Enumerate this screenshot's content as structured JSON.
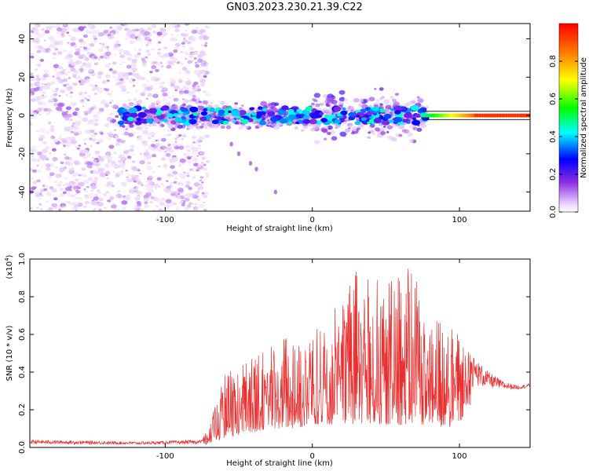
{
  "title": "GN03.2023.230.21.39.C22",
  "chart_data": [
    {
      "type": "heatmap",
      "xlabel": "Height of straight line (km)",
      "ylabel": "Frequency (Hz)",
      "xlim": [
        -192,
        148
      ],
      "ylim": [
        -50,
        48
      ],
      "x_ticks": [
        -100,
        0,
        100
      ],
      "y_ticks": [
        -40,
        -20,
        0,
        20,
        40
      ],
      "grid": false,
      "colorbar": {
        "label": "Normalized spectral amplitude",
        "range": [
          0.0,
          1.0
        ],
        "ticks": [
          0.0,
          0.2,
          0.4,
          0.6,
          0.8
        ],
        "colormap": [
          "#ffffff",
          "#dcb8f5",
          "#8a2be2",
          "#0000ff",
          "#00ffff",
          "#00ff00",
          "#ffff00",
          "#ff8000",
          "#ff0000"
        ]
      },
      "ridge": {
        "frequency_hz": 0,
        "strong_tone_from_x": 75,
        "strong_tone_value": 0.95,
        "broadband_noise_x_range": [
          -192,
          -75
        ]
      }
    },
    {
      "type": "line",
      "xlabel": "Height of straight line (km)",
      "ylabel": "SNR (10 * v/v)",
      "y_multiplier_label": "(x10",
      "y_multiplier_exp": "4",
      "xlim": [
        -192,
        148
      ],
      "ylim": [
        0,
        1.0
      ],
      "x_ticks": [
        -100,
        0,
        100
      ],
      "y_ticks": [
        0.0,
        0.2,
        0.4,
        0.6,
        0.8,
        1.0
      ],
      "grid": false,
      "color": "#e83030",
      "envelope": {
        "x": [
          -192,
          -120,
          -75,
          -70,
          -60,
          -50,
          -40,
          -30,
          -20,
          -10,
          0,
          10,
          20,
          25,
          30,
          40,
          50,
          60,
          70,
          80,
          90,
          100,
          110,
          120,
          130,
          140,
          148
        ],
        "peak": [
          0.04,
          0.03,
          0.04,
          0.12,
          0.4,
          0.42,
          0.48,
          0.52,
          0.6,
          0.55,
          0.68,
          0.72,
          0.8,
          0.88,
          1.0,
          0.9,
          0.88,
          1.0,
          0.92,
          0.7,
          0.66,
          0.6,
          0.48,
          0.4,
          0.35,
          0.33,
          0.34
        ],
        "base": [
          0.01,
          0.01,
          0.01,
          0.02,
          0.05,
          0.06,
          0.08,
          0.1,
          0.1,
          0.1,
          0.12,
          0.12,
          0.12,
          0.12,
          0.12,
          0.12,
          0.12,
          0.12,
          0.12,
          0.12,
          0.1,
          0.12,
          0.26,
          0.28,
          0.29,
          0.3,
          0.31
        ]
      }
    }
  ]
}
